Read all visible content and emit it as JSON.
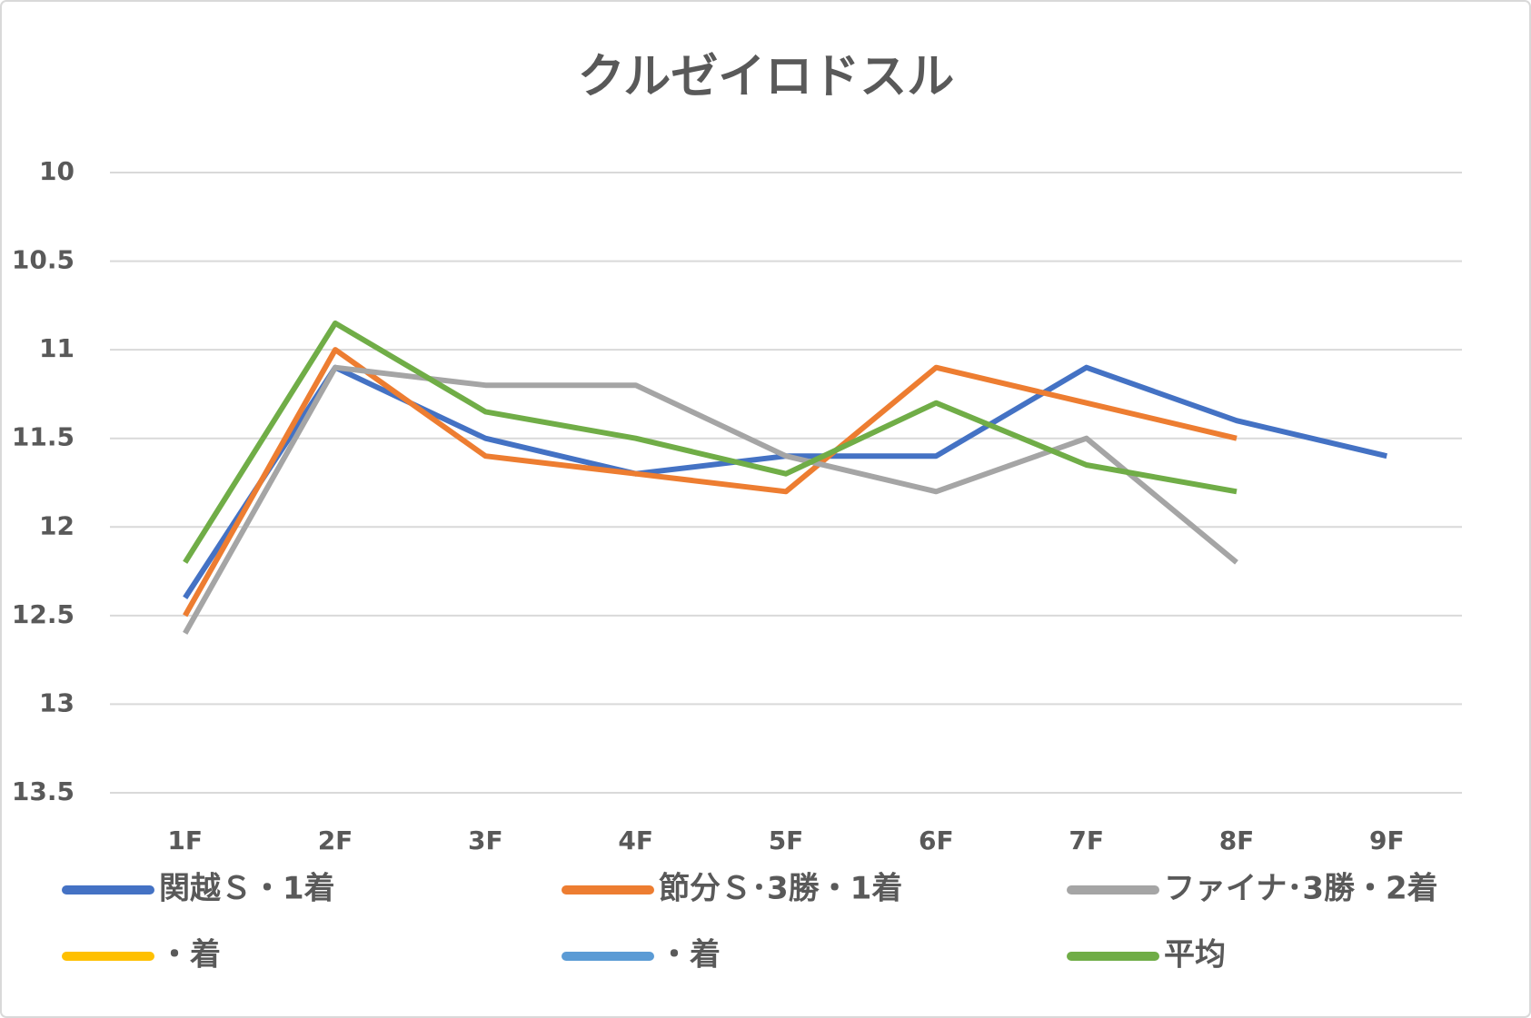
{
  "chart_data": {
    "type": "line",
    "title": "クルゼイロドスル",
    "categories": [
      "1F",
      "2F",
      "3F",
      "4F",
      "5F",
      "6F",
      "7F",
      "8F",
      "9F"
    ],
    "series": [
      {
        "name": "関越Ｓ・1着",
        "color": "#4472c4",
        "values": [
          12.4,
          11.1,
          11.5,
          11.7,
          11.6,
          11.6,
          11.1,
          11.4,
          11.6
        ]
      },
      {
        "name": "節分Ｓ･3勝・1着",
        "color": "#ed7d31",
        "values": [
          12.5,
          11.0,
          11.6,
          11.7,
          11.8,
          11.1,
          11.3,
          11.5,
          null
        ]
      },
      {
        "name": "ファイナ･3勝・2着",
        "color": "#a5a5a5",
        "values": [
          12.6,
          11.1,
          11.2,
          11.2,
          11.6,
          11.8,
          11.5,
          12.2,
          null
        ]
      },
      {
        "name": "・着",
        "color": "#ffc000",
        "values": [
          null,
          null,
          null,
          null,
          null,
          null,
          null,
          null,
          null
        ]
      },
      {
        "name": "・着",
        "color": "#5b9bd5",
        "values": [
          null,
          null,
          null,
          null,
          null,
          null,
          null,
          null,
          null
        ]
      },
      {
        "name": "平均",
        "color": "#70ad47",
        "values": [
          12.2,
          10.85,
          11.35,
          11.5,
          11.7,
          11.3,
          11.65,
          11.8,
          null
        ]
      }
    ],
    "ylim": [
      10,
      13.5
    ],
    "y_reversed": true,
    "yticks": [
      10,
      10.5,
      11,
      11.5,
      12,
      12.5,
      13,
      13.5
    ],
    "grid": true,
    "legend": "bottom"
  }
}
